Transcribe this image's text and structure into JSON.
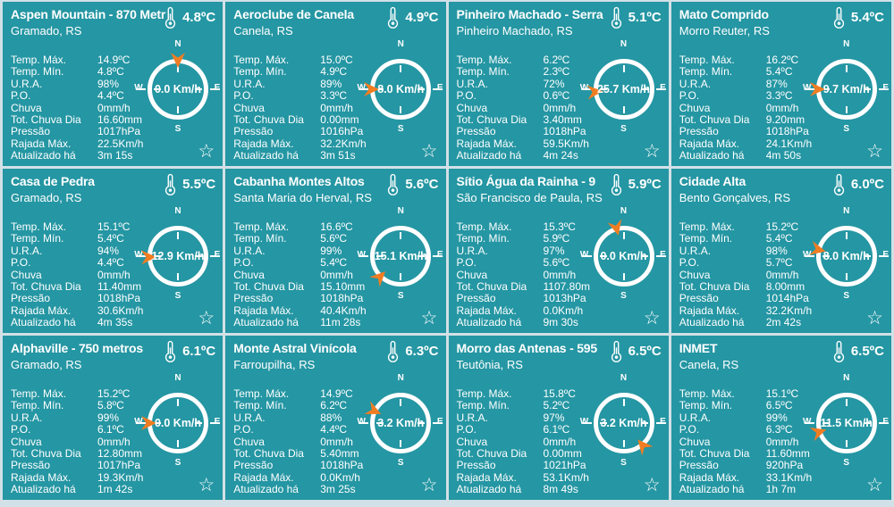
{
  "ui": {
    "stat_labels": [
      "Temp. Máx.",
      "Temp. Mín.",
      "U.R.A.",
      "P.O.",
      "Chuva",
      "Tot. Chuva Dia",
      "Pressão",
      "Rajada Máx.",
      "Atualizado há"
    ],
    "compass": {
      "n": "N",
      "s": "S",
      "w": "W",
      "e": "E"
    },
    "star_icon": "☆",
    "colors": {
      "card-bg": "#2596a3",
      "page-bg": "#d2e1e7",
      "text": "#ffffff",
      "arrow": "#f07d22"
    }
  },
  "stations": [
    {
      "name": "Aspen Mountain - 870 Metr",
      "location": "Gramado, RS",
      "temperature": "4.8ºC",
      "values": [
        "14.9ºC",
        "4.8ºC",
        "98%",
        "4.4ºC",
        "0mm/h",
        "16.60mm",
        "1017hPa",
        "22.5Km/h",
        "3m 15s"
      ],
      "wind_speed": "0.0 Km/h",
      "wind_dir_deg": 0
    },
    {
      "name": "Aeroclube de Canela",
      "location": "Canela, RS",
      "temperature": "4.9ºC",
      "values": [
        "15.0ºC",
        "4.9ºC",
        "89%",
        "3.3ºC",
        "0mm/h",
        "0.00mm",
        "1016hPa",
        "32.2Km/h",
        "3m 51s"
      ],
      "wind_speed": "8.0 Km/h",
      "wind_dir_deg": 270
    },
    {
      "name": "Pinheiro Machado - Serra",
      "location": "Pinheiro Machado, RS",
      "temperature": "5.1ºC",
      "values": [
        "6.2ºC",
        "2.3ºC",
        "72%",
        "0.6ºC",
        "0mm/h",
        "3.40mm",
        "1018hPa",
        "59.5Km/h",
        "4m 24s"
      ],
      "wind_speed": "25.7 Km/h",
      "wind_dir_deg": 265
    },
    {
      "name": "Mato Comprido",
      "location": "Morro Reuter, RS",
      "temperature": "5.4ºC",
      "values": [
        "16.2ºC",
        "5.4ºC",
        "87%",
        "3.3ºC",
        "0mm/h",
        "9.20mm",
        "1018hPa",
        "24.1Km/h",
        "4m 50s"
      ],
      "wind_speed": "9.7 Km/h",
      "wind_dir_deg": 270
    },
    {
      "name": "Casa de Pedra",
      "location": "Gramado, RS",
      "temperature": "5.5ºC",
      "values": [
        "15.1ºC",
        "5.4ºC",
        "94%",
        "4.4ºC",
        "0mm/h",
        "11.40mm",
        "1018hPa",
        "30.6Km/h",
        "4m 35s"
      ],
      "wind_speed": "12.9 Km/h",
      "wind_dir_deg": 268
    },
    {
      "name": "Cabanha Montes Altos",
      "location": "Santa Maria do Herval, RS",
      "temperature": "5.6ºC",
      "values": [
        "16.6ºC",
        "5.6ºC",
        "99%",
        "5.4ºC",
        "0mm/h",
        "15.10mm",
        "1018hPa",
        "40.4Km/h",
        "11m 28s"
      ],
      "wind_speed": "15.1 Km/h",
      "wind_dir_deg": 225
    },
    {
      "name": "Sítio Água da Rainha - 9",
      "location": "São Francisco de Paula, RS",
      "temperature": "5.9ºC",
      "values": [
        "15.3ºC",
        "5.9ºC",
        "97%",
        "5.6ºC",
        "0mm/h",
        "1107.80m",
        "1013hPa",
        "0.0Km/h",
        "9m 30s"
      ],
      "wind_speed": "0.0 Km/h",
      "wind_dir_deg": 345
    },
    {
      "name": "Cidade Alta",
      "location": "Bento Gonçalves, RS",
      "temperature": "6.0ºC",
      "values": [
        "15.2ºC",
        "5.4ºC",
        "98%",
        "5.7ºC",
        "0mm/h",
        "8.00mm",
        "1014hPa",
        "32.2Km/h",
        "2m 42s"
      ],
      "wind_speed": "8.0 Km/h",
      "wind_dir_deg": 283
    },
    {
      "name": "Alphaville - 750 metros",
      "location": "Gramado, RS",
      "temperature": "6.1ºC",
      "values": [
        "15.2ºC",
        "5.8ºC",
        "99%",
        "6.1ºC",
        "0mm/h",
        "12.80mm",
        "1017hPa",
        "19.3Km/h",
        "1m 42s"
      ],
      "wind_speed": "0.0 Km/h",
      "wind_dir_deg": 270
    },
    {
      "name": "Monte Astral Vinícola",
      "location": "Farroupilha, RS",
      "temperature": "6.3ºC",
      "values": [
        "14.9ºC",
        "6.2ºC",
        "88%",
        "4.4ºC",
        "0mm/h",
        "5.40mm",
        "1018hPa",
        "0.0Km/h",
        "3m 25s"
      ],
      "wind_speed": "3.2 Km/h",
      "wind_dir_deg": 295
    },
    {
      "name": "Morro das Antenas - 595",
      "location": "Teutônia, RS",
      "temperature": "6.5ºC",
      "values": [
        "15.8ºC",
        "5.2ºC",
        "97%",
        "6.1ºC",
        "0mm/h",
        "0.00mm",
        "1021hPa",
        "53.1Km/h",
        "8m 49s"
      ],
      "wind_speed": "3.2 Km/h",
      "wind_dir_deg": 140
    },
    {
      "name": "INMET",
      "location": "Canela, RS",
      "temperature": "6.5ºC",
      "values": [
        "15.1ºC",
        "6.5ºC",
        "99%",
        "6.3ºC",
        "0mm/h",
        "11.60mm",
        "920hPa",
        "33.1Km/h",
        "1h 7m"
      ],
      "wind_speed": "11.5 Km/h",
      "wind_dir_deg": 252
    }
  ]
}
